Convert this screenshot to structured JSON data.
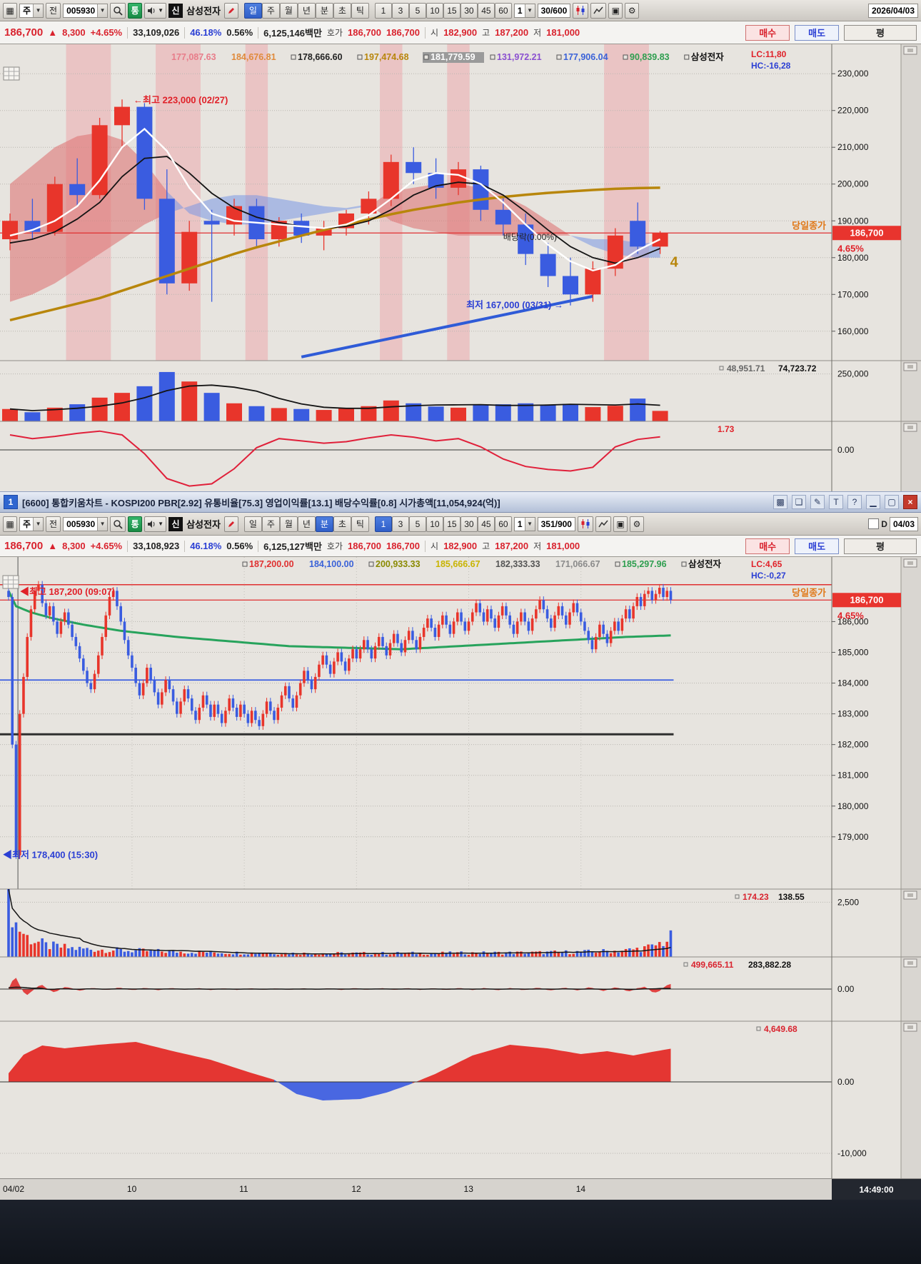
{
  "icons": {
    "window": "▦",
    "dropdown": "▼",
    "gear": "⚙",
    "save": "▣",
    "grid": "⊞",
    "minimize": "▁",
    "restore": "▢",
    "close": "×",
    "chart": "▩",
    "cascade": "❏",
    "edit": "✎",
    "text": "T",
    "help": "?"
  },
  "toolbar1": {
    "chart_type": "주",
    "prev": "전",
    "code": "005930",
    "tong": "통",
    "credit": "신",
    "stock": "삼성전자",
    "periods": [
      "일",
      "주",
      "월",
      "년",
      "분",
      "초",
      "틱"
    ],
    "active_period": 0,
    "intervals": [
      "1",
      "3",
      "5",
      "10",
      "15",
      "30",
      "45",
      "60"
    ],
    "active_interval": -1,
    "interval_combo": "1",
    "count": "30/600",
    "date": "2026/04/03"
  },
  "toolbar2": {
    "chart_type": "주",
    "prev": "전",
    "code": "005930",
    "tong": "통",
    "credit": "신",
    "stock": "삼성전자",
    "periods": [
      "일",
      "주",
      "월",
      "년",
      "분",
      "초",
      "틱"
    ],
    "active_period": 4,
    "intervals": [
      "1",
      "3",
      "5",
      "10",
      "15",
      "30",
      "45",
      "60"
    ],
    "active_interval": 0,
    "interval_combo": "1",
    "count": "351/900",
    "d_label": "D",
    "date": "04/03"
  },
  "infobar1": {
    "price": "186,700",
    "arrow": "▲",
    "change": "8,300",
    "pct": "+4.65%",
    "volume": "33,109,026",
    "strength": "46.18%",
    "ratio": "0.56%",
    "amount": "6,125,146백만",
    "hoga_label": "호가",
    "ask": "186,700",
    "bid": "186,700",
    "open_label": "시",
    "open": "182,900",
    "high_label": "고",
    "high": "187,200",
    "low_label": "저",
    "low": "181,000",
    "buy": "매수",
    "sell": "매도",
    "avg": "평"
  },
  "infobar2": {
    "price": "186,700",
    "arrow": "▲",
    "change": "8,300",
    "pct": "+4.65%",
    "volume": "33,108,923",
    "strength": "46.18%",
    "ratio": "0.56%",
    "amount": "6,125,127백만",
    "hoga_label": "호가",
    "ask": "186,700",
    "bid": "186,700",
    "open_label": "시",
    "open": "182,900",
    "high_label": "고",
    "high": "187,200",
    "low_label": "저",
    "low": "181,000",
    "buy": "매수",
    "sell": "매도",
    "avg": "평"
  },
  "title2": {
    "win_no": "1",
    "text": "[6600] 통합키움차트 - KOSPI200 PBR[2.92] 유통비율[75.3] 영업이익률[13.1] 배당수익률[0.8] 시가총액[11,054,924(억)]"
  },
  "xaxis": {
    "time": "14:49:00"
  },
  "chart_data": [
    {
      "type": "candlestick",
      "series": "삼성전자",
      "timeframe": "주봉",
      "legend": [
        {
          "t": "177,087.63",
          "c": "#e87d8a"
        },
        {
          "t": "184,676.81",
          "c": "#e08a3c"
        },
        {
          "t": "178,666.60",
          "c": "#222222",
          "sq": true
        },
        {
          "t": "197,474.68",
          "c": "#b8860b",
          "sq": true
        },
        {
          "t": "181,779.59",
          "c": "#ffffff",
          "sq": true,
          "bg": "#9a9a9a"
        },
        {
          "t": "131,972.21",
          "c": "#8a4fd0",
          "sq": true
        },
        {
          "t": "177,906.04",
          "c": "#3a62d8",
          "sq": true
        },
        {
          "t": "90,839.83",
          "c": "#2e9e4f",
          "sq": true
        },
        {
          "t": "삼성전자",
          "c": "#111111",
          "sq": true
        }
      ],
      "lc": "LC:11,80",
      "hc": "HC:-16,28",
      "ylim": [
        152000,
        238000
      ],
      "yticks": [
        160000,
        170000,
        180000,
        190000,
        200000,
        210000,
        220000,
        230000
      ],
      "candles": [
        [
          185000,
          192000,
          182000,
          190000
        ],
        [
          190000,
          196000,
          185000,
          187000
        ],
        [
          187000,
          202000,
          186000,
          200000
        ],
        [
          200000,
          207000,
          194000,
          197000
        ],
        [
          197000,
          218000,
          196000,
          216000
        ],
        [
          216000,
          223000,
          210000,
          221000
        ],
        [
          221000,
          222000,
          193000,
          196000
        ],
        [
          196000,
          204000,
          170000,
          173000
        ],
        [
          173000,
          190000,
          171000,
          187000
        ],
        [
          190000,
          193000,
          168000,
          189000
        ],
        [
          189000,
          196000,
          186000,
          194000
        ],
        [
          194000,
          196000,
          183000,
          185000
        ],
        [
          185000,
          191000,
          183000,
          190000
        ],
        [
          190000,
          192000,
          184000,
          186000
        ],
        [
          186000,
          190000,
          182000,
          188000
        ],
        [
          188000,
          193000,
          186000,
          192000
        ],
        [
          192000,
          198000,
          189000,
          196000
        ],
        [
          196000,
          208000,
          194000,
          206000
        ],
        [
          206000,
          210000,
          200000,
          203000
        ],
        [
          203000,
          207000,
          196000,
          199000
        ],
        [
          199000,
          206000,
          197000,
          204000
        ],
        [
          204000,
          205000,
          190000,
          193000
        ],
        [
          193000,
          197000,
          186000,
          189000
        ],
        [
          189000,
          192000,
          178000,
          181000
        ],
        [
          181000,
          184000,
          172000,
          175000
        ],
        [
          175000,
          180000,
          167000,
          170000
        ],
        [
          170000,
          179000,
          168000,
          177000
        ],
        [
          177000,
          188000,
          175000,
          186000
        ],
        [
          190000,
          195000,
          181000,
          183000
        ],
        [
          183000,
          187200,
          181000,
          186700
        ]
      ],
      "volumes": [
        65000,
        48000,
        72000,
        90000,
        125000,
        150000,
        185000,
        260000,
        210000,
        150000,
        95000,
        80000,
        70000,
        65000,
        60000,
        68000,
        80000,
        110000,
        95000,
        78000,
        72000,
        85000,
        90000,
        95000,
        88000,
        92000,
        75000,
        82000,
        120000,
        55000
      ],
      "vol_ylim": [
        0,
        320000
      ],
      "vol_tick": 250000,
      "vol_tick_label": "250,000",
      "vol_label1": "48,951.71",
      "vol_label2": "74,723.72",
      "osc": [
        2.0,
        1.5,
        1.8,
        2.2,
        2.5,
        2.0,
        -0.5,
        -3.8,
        -4.8,
        -4.5,
        -2.5,
        0.3,
        1.5,
        1.2,
        0.9,
        1.1,
        1.6,
        2.0,
        1.7,
        1.2,
        1.5,
        0.4,
        -1.2,
        -2.2,
        -2.6,
        -2.8,
        -2.3,
        0.4,
        1.4,
        1.73
      ],
      "osc_ylim": [
        -5.5,
        3.8
      ],
      "osc_value": "1.73",
      "osc_zero_label": "0.00",
      "ma_white": [
        186000,
        187500,
        190000,
        194000,
        201000,
        210000,
        215000,
        209000,
        199000,
        192000,
        190000,
        189500,
        189000,
        188500,
        188000,
        189000,
        191500,
        196000,
        201000,
        203000,
        202500,
        200000,
        195000,
        189000,
        183500,
        179000,
        176500,
        178000,
        182000,
        185000
      ],
      "ma_black": [
        184000,
        185000,
        187000,
        190500,
        195000,
        202000,
        207000,
        207500,
        203000,
        197500,
        193500,
        191000,
        189500,
        188500,
        188000,
        188500,
        190000,
        193000,
        197000,
        199500,
        200500,
        200000,
        197000,
        192500,
        187500,
        183000,
        180000,
        178500,
        180000,
        182500
      ],
      "ma_gold": [
        163000,
        164500,
        166000,
        167500,
        169000,
        171000,
        173000,
        175000,
        177000,
        179000,
        181000,
        182800,
        184400,
        186000,
        187500,
        189000,
        190400,
        191800,
        193000,
        194000,
        195000,
        195800,
        196500,
        197100,
        197600,
        198000,
        198400,
        198700,
        198900,
        199000
      ],
      "cloud_a": [
        200000,
        205000,
        210000,
        213000,
        214000,
        212000,
        206000,
        198000,
        192000,
        190000,
        189000,
        189000,
        190000,
        191000,
        192000,
        193000,
        194000,
        198000,
        199000,
        200000,
        200000,
        199000,
        197000,
        194000,
        190000,
        186000,
        183000,
        181000,
        180000,
        180000
      ],
      "cloud_b": [
        168000,
        170000,
        173000,
        177000,
        181000,
        185000,
        189000,
        192000,
        194000,
        196000,
        197000,
        197000,
        196000,
        195000,
        194000,
        193500,
        194500,
        190000,
        188000,
        187000,
        186000,
        186000,
        186000,
        186000,
        186000,
        186000,
        185000,
        185000,
        184000,
        184000
      ],
      "stripes": [
        [
          3,
          4
        ],
        [
          7,
          8
        ],
        [
          11,
          11
        ],
        [
          17,
          17
        ],
        [
          20,
          20
        ],
        [
          27,
          28
        ]
      ],
      "trend": {
        "i1": 13,
        "p1": 153000,
        "i2": 26,
        "p2": 169500
      },
      "price": 186700,
      "price_label": "186,700",
      "pct_label": "4.65%",
      "close_tag": "당일종가",
      "ann_high": "최고 223,000 (02/27)",
      "ann_high_idx": 5,
      "ann_high_price": 223000,
      "ann_low": "최저 167,000 (03/31)",
      "ann_low_idx": 25,
      "ann_low_price": 167000,
      "dividend": "배당락(0.00%)",
      "dividend_idx": 22,
      "dividend_price": 184800,
      "wave": "4",
      "wave_idx": 29,
      "wave_price": 177500
    },
    {
      "type": "candlestick",
      "series": "삼성전자",
      "timeframe": "1분",
      "scale": 1000,
      "legend": [
        {
          "t": "187,200.00",
          "c": "#e03030",
          "sq": true
        },
        {
          "t": "184,100.00",
          "c": "#3a62d8"
        },
        {
          "t": "200,933.33",
          "c": "#8a8a00",
          "sq": true
        },
        {
          "t": "185,666.67",
          "c": "#c8b400"
        },
        {
          "t": "182,333.33",
          "c": "#555555"
        },
        {
          "t": "171,066.67",
          "c": "#8a8a8a"
        },
        {
          "t": "185,297.96",
          "c": "#2e9e4f",
          "sq": true
        },
        {
          "t": "삼성전자",
          "c": "#111111",
          "sq": true
        }
      ],
      "lc": "LC:4,65",
      "hc": "HC:-0,27",
      "ylim": [
        177300,
        188100
      ],
      "yticks": [
        179000,
        180000,
        181000,
        182000,
        183000,
        184000,
        185000,
        186000
      ],
      "open_first": 187.0,
      "closes": [
        186.8,
        182.0,
        178.4,
        183.0,
        184.2,
        185.5,
        186.4,
        187.0,
        187.2,
        186.6,
        186.2,
        186.5,
        186.0,
        185.6,
        186.0,
        186.3,
        185.9,
        185.5,
        185.2,
        184.8,
        184.4,
        184.0,
        183.8,
        184.3,
        184.9,
        185.5,
        186.2,
        186.8,
        187.0,
        186.5,
        186.0,
        185.4,
        184.9,
        184.5,
        184.0,
        183.6,
        184.0,
        184.5,
        184.1,
        183.7,
        183.3,
        183.7,
        184.1,
        183.8,
        183.4,
        183.0,
        183.4,
        183.8,
        183.5,
        183.1,
        182.8,
        183.2,
        183.6,
        183.3,
        182.9,
        183.3,
        183.0,
        182.7,
        183.1,
        183.5,
        183.2,
        182.9,
        183.3,
        183.0,
        182.7,
        183.1,
        182.8,
        182.6,
        183.0,
        183.4,
        183.1,
        182.8,
        183.2,
        183.6,
        183.9,
        183.5,
        183.2,
        183.6,
        184.0,
        184.4,
        184.1,
        183.8,
        184.2,
        184.6,
        184.9,
        184.6,
        184.3,
        184.7,
        185.0,
        184.7,
        184.4,
        184.8,
        185.1,
        184.8,
        185.1,
        185.4,
        185.1,
        184.8,
        185.2,
        185.5,
        185.2,
        184.9,
        185.3,
        185.6,
        185.3,
        185.0,
        185.4,
        185.7,
        185.4,
        185.1,
        185.5,
        185.8,
        186.1,
        185.8,
        185.5,
        185.9,
        186.2,
        185.9,
        185.6,
        186.0,
        186.3,
        186.0,
        185.7,
        186.0,
        186.3,
        186.6,
        186.3,
        186.0,
        186.4,
        186.1,
        185.8,
        186.2,
        186.5,
        186.2,
        185.9,
        185.6,
        186.0,
        186.3,
        186.0,
        185.7,
        186.1,
        186.4,
        186.7,
        186.4,
        186.1,
        185.8,
        186.2,
        186.5,
        186.2,
        185.9,
        186.3,
        186.6,
        186.3,
        186.0,
        185.7,
        185.4,
        185.1,
        185.5,
        185.9,
        185.6,
        185.3,
        185.7,
        186.0,
        185.7,
        186.1,
        186.4,
        186.1,
        186.5,
        186.8,
        186.5,
        186.9,
        187.0,
        186.7,
        186.9,
        187.1,
        186.8,
        187.0,
        186.7
      ],
      "hlines": [
        {
          "p": 187200,
          "color": "#e03030",
          "w": 1.5,
          "full": true
        },
        {
          "p": 184100,
          "color": "#3a5ce0",
          "w": 1.8,
          "full": false
        },
        {
          "p": 182333,
          "color": "#2f2f2f",
          "w": 3,
          "full": false
        }
      ],
      "green_ctrl": [
        [
          0,
          187.0
        ],
        [
          2,
          186.5
        ],
        [
          6,
          186.3
        ],
        [
          12,
          186.1
        ],
        [
          20,
          185.9
        ],
        [
          30,
          185.7
        ],
        [
          45,
          185.5
        ],
        [
          60,
          185.35
        ],
        [
          75,
          185.2
        ],
        [
          90,
          185.15
        ],
        [
          105,
          185.1
        ],
        [
          120,
          185.2
        ],
        [
          135,
          185.3
        ],
        [
          150,
          185.4
        ],
        [
          165,
          185.5
        ],
        [
          177,
          185.55
        ]
      ],
      "price": 186700,
      "price_label": "186,700",
      "pct_label": "4.65%",
      "close_tag": "당일종가",
      "ann_high": "최고 187,200 (09:07)",
      "ann_low": "최저 178,400 (15:30)",
      "ann_low_price": 178400,
      "boundary_idx": 2.5,
      "hours": [
        {
          "label": "10",
          "idx": 33
        },
        {
          "label": "11",
          "idx": 63
        },
        {
          "label": "12",
          "idx": 93
        },
        {
          "label": "13",
          "idx": 123
        },
        {
          "label": "14",
          "idx": 153
        }
      ],
      "day_label": "04/02",
      "vol_ctrl": [
        [
          0,
          3000
        ],
        [
          2,
          1500
        ],
        [
          5,
          900
        ],
        [
          10,
          520
        ],
        [
          18,
          380
        ],
        [
          30,
          300
        ],
        [
          45,
          240
        ],
        [
          60,
          190
        ],
        [
          80,
          160
        ],
        [
          100,
          165
        ],
        [
          120,
          175
        ],
        [
          140,
          195
        ],
        [
          155,
          235
        ],
        [
          165,
          300
        ],
        [
          172,
          450
        ],
        [
          177,
          850
        ]
      ],
      "vol_ylim": [
        0,
        3100
      ],
      "vol_tick": 2500,
      "vol_tick_label": "2,500",
      "vol_label1": "174.23",
      "vol_label2": "138.55",
      "ind2_ctrl": [
        [
          0,
          480000
        ],
        [
          2,
          260000
        ],
        [
          5,
          130000
        ],
        [
          10,
          60000
        ],
        [
          20,
          30000
        ],
        [
          40,
          20000
        ],
        [
          80,
          16000
        ],
        [
          120,
          19000
        ],
        [
          150,
          26000
        ],
        [
          168,
          45000
        ],
        [
          177,
          110000
        ]
      ],
      "ind2_ylim": [
        -550000,
        550000
      ],
      "ind2_label1": "499,665.11",
      "ind2_label2": "283,882.28",
      "ind2_zero_label": "0.00",
      "ind3_ctrl": [
        [
          0,
          1200
        ],
        [
          4,
          3800
        ],
        [
          9,
          5100
        ],
        [
          15,
          4700
        ],
        [
          24,
          5200
        ],
        [
          34,
          5600
        ],
        [
          44,
          4300
        ],
        [
          54,
          3100
        ],
        [
          64,
          1400
        ],
        [
          71,
          300
        ],
        [
          77,
          -1700
        ],
        [
          84,
          -2600
        ],
        [
          94,
          -2400
        ],
        [
          101,
          -1500
        ],
        [
          107,
          -400
        ],
        [
          114,
          1100
        ],
        [
          124,
          3700
        ],
        [
          134,
          5200
        ],
        [
          144,
          4700
        ],
        [
          153,
          3900
        ],
        [
          160,
          4300
        ],
        [
          167,
          3700
        ],
        [
          172,
          4200
        ],
        [
          177,
          4650
        ]
      ],
      "ind3_ylim": [
        -13500,
        8500
      ],
      "ind3_label": "4,649.68",
      "ind3_zero_label": "0.00",
      "ind3_tick": -10000,
      "ind3_tick_label": "-10,000"
    }
  ]
}
